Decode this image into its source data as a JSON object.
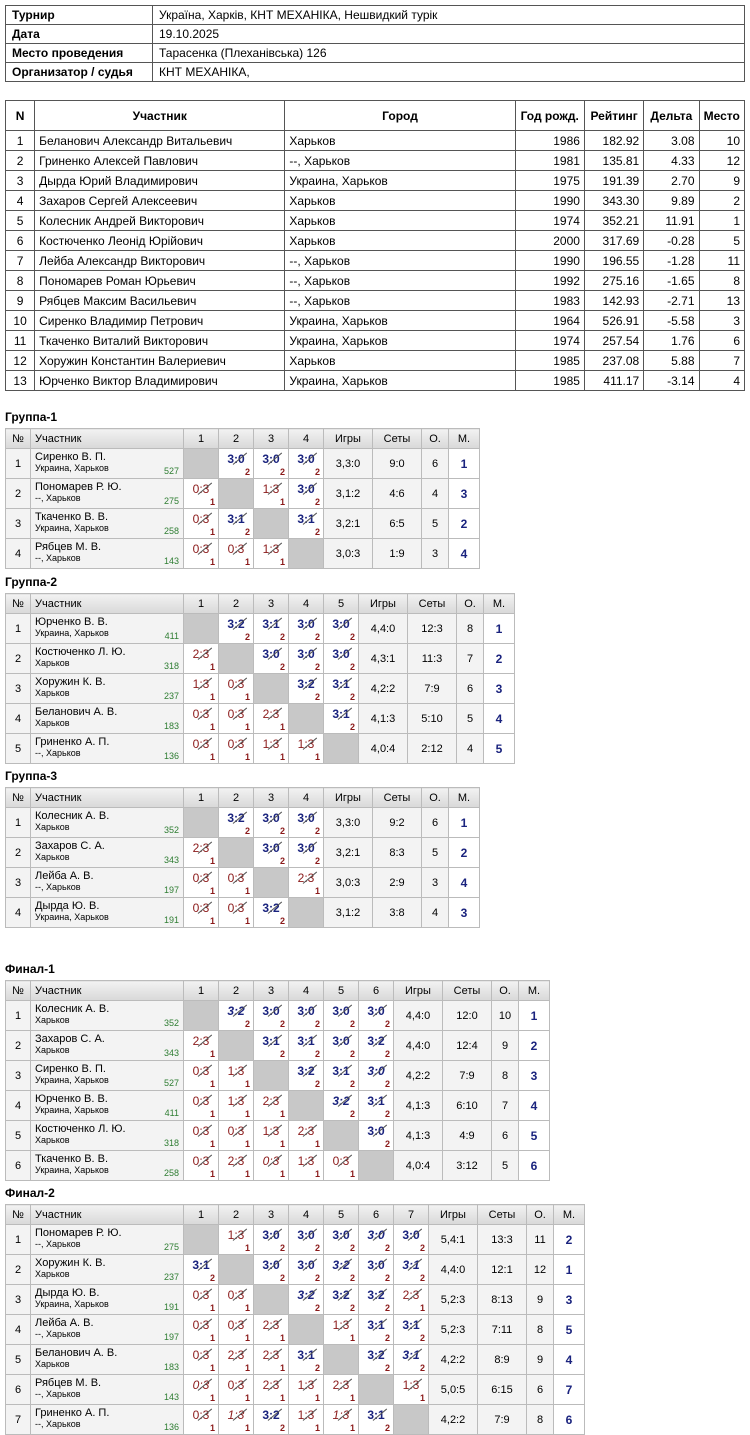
{
  "info": [
    {
      "k": "Турнир",
      "v": "Україна, Харків, КНТ МЕХАНІКА, Нешвидкий турік"
    },
    {
      "k": "Дата",
      "v": "19.10.2025"
    },
    {
      "k": "Место проведения",
      "v": "Тарасенка (Плеханівська) 126"
    },
    {
      "k": "Организатор / судья",
      "v": "КНТ МЕХАНІКА,"
    }
  ],
  "participants": {
    "headers": {
      "n": "N",
      "name": "Участник",
      "city": "Город",
      "year": "Год рожд.",
      "rating": "Рейтинг",
      "delta": "Дельта",
      "place": "Место"
    },
    "rows": [
      [
        "1",
        "Беланович Александр Витальевич",
        "Харьков",
        "1986",
        "182.92",
        "3.08",
        "10"
      ],
      [
        "2",
        "Гриненко Алексей Павлович",
        "--, Харьков",
        "1981",
        "135.81",
        "4.33",
        "12"
      ],
      [
        "3",
        "Дырда Юрий Владимирович",
        "Украина, Харьков",
        "1975",
        "191.39",
        "2.70",
        "9"
      ],
      [
        "4",
        "Захаров Сергей Алексеевич",
        "Харьков",
        "1990",
        "343.30",
        "9.89",
        "2"
      ],
      [
        "5",
        "Колесник Андрей Викторович",
        "Харьков",
        "1974",
        "352.21",
        "11.91",
        "1"
      ],
      [
        "6",
        "Костюченко Леонід Юрійович",
        "Харьков",
        "2000",
        "317.69",
        "-0.28",
        "5"
      ],
      [
        "7",
        "Лейба Александр Викторович",
        "--, Харьков",
        "1990",
        "196.55",
        "-1.28",
        "11"
      ],
      [
        "8",
        "Пономарев Роман Юрьевич",
        "--, Харьков",
        "1992",
        "275.16",
        "-1.65",
        "8"
      ],
      [
        "9",
        "Рябцев Максим Васильевич",
        "--, Харьков",
        "1983",
        "142.93",
        "-2.71",
        "13"
      ],
      [
        "10",
        "Сиренко Владимир Петрович",
        "Украина, Харьков",
        "1964",
        "526.91",
        "-5.58",
        "3"
      ],
      [
        "11",
        "Ткаченко Виталий Викторович",
        "Украина, Харьков",
        "1974",
        "257.54",
        "1.76",
        "6"
      ],
      [
        "12",
        "Хоружин Константин Валериевич",
        "Харьков",
        "1985",
        "237.08",
        "5.88",
        "7"
      ],
      [
        "13",
        "Юрченко Виктор Владимирович",
        "Украина, Харьков",
        "1985",
        "411.17",
        "-3.14",
        "4"
      ]
    ]
  },
  "group_headers": {
    "no": "№",
    "name": "Участник",
    "games": "Игры",
    "sets": "Сеты",
    "pts": "О.",
    "place": "М."
  },
  "groups": [
    {
      "title": "Группа-1",
      "players": [
        {
          "name": "Сиренко В. П.",
          "city": "Украина, Харьков",
          "rating": "527",
          "res": [
            "",
            "3:0|2|w",
            "3:0|2|w",
            "3:0|2|w"
          ],
          "games": "3,3:0",
          "sets": "9:0",
          "pts": "6",
          "place": "1"
        },
        {
          "name": "Пономарев Р. Ю.",
          "city": "--, Харьков",
          "rating": "275",
          "res": [
            "0:3|1|l",
            "",
            "1:3|1|l",
            "3:0|2|w"
          ],
          "games": "3,1:2",
          "sets": "4:6",
          "pts": "4",
          "place": "3"
        },
        {
          "name": "Ткаченко В. В.",
          "city": "Украина, Харьков",
          "rating": "258",
          "res": [
            "0:3|1|l",
            "3:1|2|w",
            "",
            "3:1|2|w"
          ],
          "games": "3,2:1",
          "sets": "6:5",
          "pts": "5",
          "place": "2"
        },
        {
          "name": "Рябцев М. В.",
          "city": "--, Харьков",
          "rating": "143",
          "res": [
            "0:3|1|l",
            "0:3|1|l",
            "1:3|1|l",
            ""
          ],
          "games": "3,0:3",
          "sets": "1:9",
          "pts": "3",
          "place": "4"
        }
      ]
    },
    {
      "title": "Группа-2",
      "players": [
        {
          "name": "Юрченко В. В.",
          "city": "Украина, Харьков",
          "rating": "411",
          "res": [
            "",
            "3:2|2|w",
            "3:1|2|w",
            "3:0|2|w",
            "3:0|2|w"
          ],
          "games": "4,4:0",
          "sets": "12:3",
          "pts": "8",
          "place": "1"
        },
        {
          "name": "Костюченко Л. Ю.",
          "city": "Харьков",
          "rating": "318",
          "res": [
            "2:3|1|l",
            "",
            "3:0|2|w",
            "3:0|2|w",
            "3:0|2|w"
          ],
          "games": "4,3:1",
          "sets": "11:3",
          "pts": "7",
          "place": "2"
        },
        {
          "name": "Хоружин К. В.",
          "city": "Харьков",
          "rating": "237",
          "res": [
            "1:3|1|l",
            "0:3|1|l",
            "",
            "3:2|2|w",
            "3:1|2|w"
          ],
          "games": "4,2:2",
          "sets": "7:9",
          "pts": "6",
          "place": "3"
        },
        {
          "name": "Беланович А. В.",
          "city": "Харьков",
          "rating": "183",
          "res": [
            "0:3|1|l",
            "0:3|1|l",
            "2:3|1|l",
            "",
            "3:1|2|w"
          ],
          "games": "4,1:3",
          "sets": "5:10",
          "pts": "5",
          "place": "4"
        },
        {
          "name": "Гриненко А. П.",
          "city": "--, Харьков",
          "rating": "136",
          "res": [
            "0:3|1|l",
            "0:3|1|l",
            "1:3|1|l",
            "1:3|1|l",
            ""
          ],
          "games": "4,0:4",
          "sets": "2:12",
          "pts": "4",
          "place": "5"
        }
      ]
    },
    {
      "title": "Группа-3",
      "players": [
        {
          "name": "Колесник А. В.",
          "city": "Харьков",
          "rating": "352",
          "res": [
            "",
            "3:2|2|w",
            "3:0|2|w",
            "3:0|2|w"
          ],
          "games": "3,3:0",
          "sets": "9:2",
          "pts": "6",
          "place": "1"
        },
        {
          "name": "Захаров С. А.",
          "city": "Харьков",
          "rating": "343",
          "res": [
            "2:3|1|l",
            "",
            "3:0|2|w",
            "3:0|2|w"
          ],
          "games": "3,2:1",
          "sets": "8:3",
          "pts": "5",
          "place": "2"
        },
        {
          "name": "Лейба А. В.",
          "city": "--, Харьков",
          "rating": "197",
          "res": [
            "0:3|1|l",
            "0:3|1|l",
            "",
            "2:3|1|l"
          ],
          "games": "3,0:3",
          "sets": "2:9",
          "pts": "3",
          "place": "4"
        },
        {
          "name": "Дырда Ю. В.",
          "city": "Украина, Харьков",
          "rating": "191",
          "res": [
            "0:3|1|l",
            "0:3|1|l",
            "3:2|2|w",
            ""
          ],
          "games": "3,1:2",
          "sets": "3:8",
          "pts": "4",
          "place": "3"
        }
      ]
    },
    {
      "title": "Финал-1",
      "players": [
        {
          "name": "Колесник А. В.",
          "city": "Харьков",
          "rating": "352",
          "res": [
            "",
            "3:2|2|t",
            "3:0|2|w",
            "3:0|2|w",
            "3:0|2|w",
            "3:0|2|w"
          ],
          "games": "4,4:0",
          "sets": "12:0",
          "pts": "10",
          "place": "1"
        },
        {
          "name": "Захаров С. А.",
          "city": "Харьков",
          "rating": "343",
          "res": [
            "2:3|1|l",
            "",
            "3:1|2|w",
            "3:1|2|w",
            "3:0|2|w",
            "3:2|2|w"
          ],
          "games": "4,4:0",
          "sets": "12:4",
          "pts": "9",
          "place": "2"
        },
        {
          "name": "Сиренко В. П.",
          "city": "Украина, Харьков",
          "rating": "527",
          "res": [
            "0:3|1|l",
            "1:3|1|l",
            "",
            "3:2|2|w",
            "3:1|2|w",
            "3:0|2|t"
          ],
          "games": "4,2:2",
          "sets": "7:9",
          "pts": "8",
          "place": "3"
        },
        {
          "name": "Юрченко В. В.",
          "city": "Украина, Харьков",
          "rating": "411",
          "res": [
            "0:3|1|l",
            "1:3|1|l",
            "2:3|1|l",
            "",
            "3:2|2|t",
            "3:1|2|w"
          ],
          "games": "4,1:3",
          "sets": "6:10",
          "pts": "7",
          "place": "4"
        },
        {
          "name": "Костюченко Л. Ю.",
          "city": "Харьков",
          "rating": "318",
          "res": [
            "0:3|1|l",
            "0:3|1|l",
            "1:3|1|l",
            "2:3|1|l",
            "",
            "3:0|2|w"
          ],
          "games": "4,1:3",
          "sets": "4:9",
          "pts": "6",
          "place": "5"
        },
        {
          "name": "Ткаченко В. В.",
          "city": "Украина, Харьков",
          "rating": "258",
          "res": [
            "0:3|1|l",
            "2:3|1|l",
            "0:3|1|tl",
            "1:3|1|l",
            "0:3|1|l",
            ""
          ],
          "games": "4,0:4",
          "sets": "3:12",
          "pts": "5",
          "place": "6"
        }
      ]
    },
    {
      "title": "Финал-2",
      "players": [
        {
          "name": "Пономарев Р. Ю.",
          "city": "--, Харьков",
          "rating": "275",
          "res": [
            "",
            "1:3|1|l",
            "3:0|2|w",
            "3:0|2|w",
            "3:0|2|w",
            "3:0|2|t",
            "3:0|2|w"
          ],
          "games": "5,4:1",
          "sets": "13:3",
          "pts": "11",
          "place": "2"
        },
        {
          "name": "Хоружин К. В.",
          "city": "Харьков",
          "rating": "237",
          "res": [
            "3:1|2|w",
            "",
            "3:0|2|w",
            "3:0|2|w",
            "3:2|2|t",
            "3:0|2|w",
            "3:1|2|t"
          ],
          "games": "4,4:0",
          "sets": "12:1",
          "pts": "12",
          "place": "1"
        },
        {
          "name": "Дырда Ю. В.",
          "city": "Украина, Харьков",
          "rating": "191",
          "res": [
            "0:3|1|l",
            "0:3|1|l",
            "",
            "3:2|2|t",
            "3:2|2|w",
            "3:2|2|w",
            "2:3|1|l"
          ],
          "games": "5,2:3",
          "sets": "8:13",
          "pts": "9",
          "place": "3"
        },
        {
          "name": "Лейба А. В.",
          "city": "--, Харьков",
          "rating": "197",
          "res": [
            "0:3|1|l",
            "0:3|1|l",
            "2:3|1|l",
            "",
            "1:3|1|l",
            "3:1|2|w",
            "3:1|2|w"
          ],
          "games": "5,2:3",
          "sets": "7:11",
          "pts": "8",
          "place": "5"
        },
        {
          "name": "Беланович А. В.",
          "city": "Харьков",
          "rating": "183",
          "res": [
            "0:3|1|l",
            "2:3|1|l",
            "2:3|1|l",
            "3:1|2|w",
            "",
            "3:2|2|w",
            "3:1|2|t"
          ],
          "games": "4,2:2",
          "sets": "8:9",
          "pts": "9",
          "place": "4"
        },
        {
          "name": "Рябцев М. В.",
          "city": "--, Харьков",
          "rating": "143",
          "res": [
            "0:3|1|tl",
            "0:3|1|l",
            "2:3|1|l",
            "1:3|1|l",
            "2:3|1|l",
            "",
            "1:3|1|l"
          ],
          "games": "5,0:5",
          "sets": "6:15",
          "pts": "6",
          "place": "7"
        },
        {
          "name": "Гриненко А. П.",
          "city": "--, Харьков",
          "rating": "136",
          "res": [
            "0:3|1|l",
            "1:3|1|tl",
            "3:2|2|w",
            "1:3|1|l",
            "1:3|1|tl",
            "3:1|2|w",
            ""
          ],
          "games": "4,2:2",
          "sets": "7:9",
          "pts": "8",
          "place": "6"
        }
      ]
    }
  ]
}
